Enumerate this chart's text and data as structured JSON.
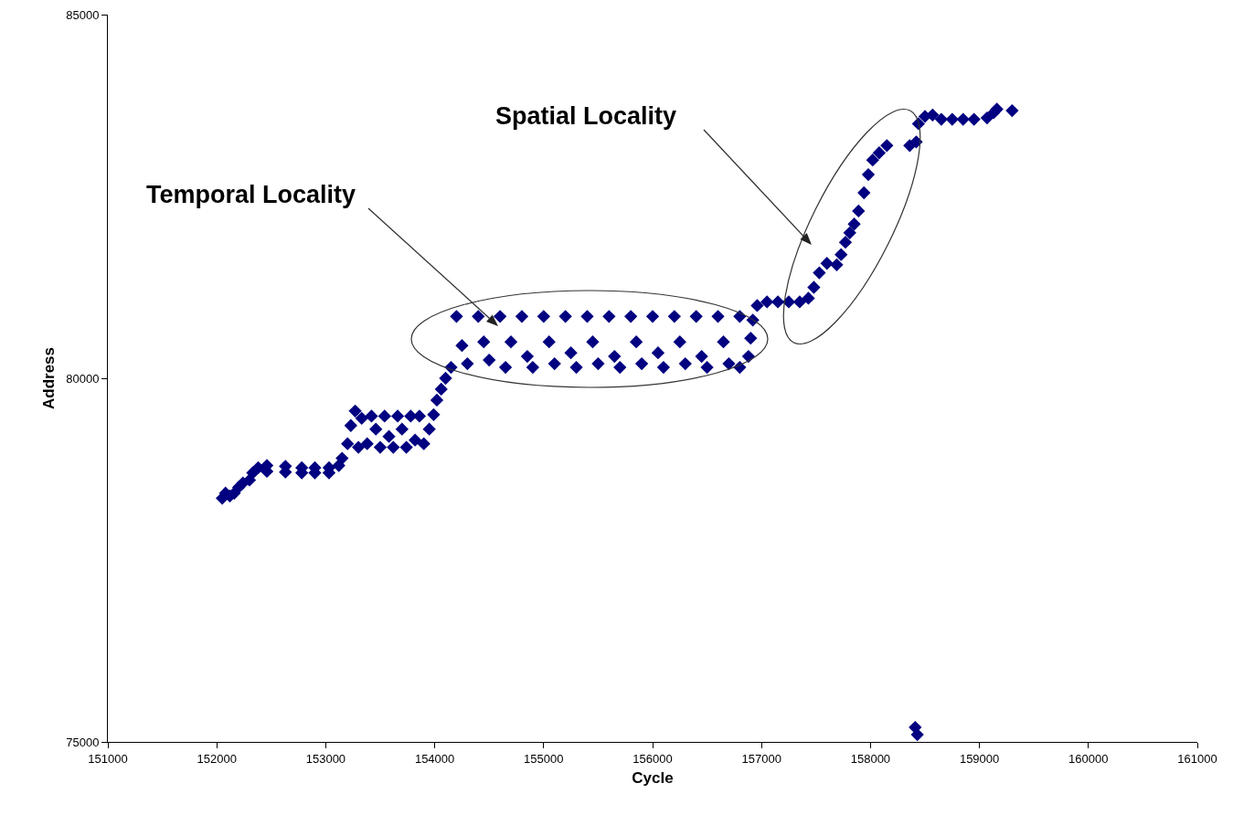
{
  "chart_data": {
    "type": "scatter",
    "xlabel": "Cycle",
    "ylabel": "Address",
    "annotations": [
      "Temporal Locality",
      "Spatial Locality"
    ],
    "series": [
      {
        "color": "#000080",
        "x": [
          152050,
          152080,
          152120,
          152160,
          152200,
          152240,
          152300,
          152330,
          152380,
          152460,
          152460,
          152630,
          152630,
          152780,
          152780,
          152900,
          152900,
          153030,
          153030,
          153120,
          153150,
          153200,
          153230,
          153270,
          153300,
          153330,
          153380,
          153420,
          153460,
          153500,
          153540,
          153580,
          153620,
          153660,
          153700,
          153740,
          153780,
          153820,
          153860,
          153900,
          153950,
          153990,
          154020,
          154060,
          154100,
          154150,
          154200,
          154250,
          154300,
          154400,
          154450,
          154500,
          154600,
          154650,
          154700,
          154800,
          154850,
          154900,
          155000,
          155050,
          155100,
          155200,
          155250,
          155300,
          155400,
          155450,
          155500,
          155600,
          155650,
          155700,
          155800,
          155850,
          155900,
          156000,
          156050,
          156100,
          156200,
          156250,
          156300,
          156400,
          156450,
          156500,
          156600,
          156650,
          156700,
          156800,
          156800,
          156880,
          156900,
          156920,
          156960,
          157050,
          157150,
          157250,
          157350,
          157430,
          157480,
          157530,
          157600,
          157690,
          157730,
          157770,
          157810,
          157850,
          157890,
          157940,
          157980,
          158020,
          158080,
          158150,
          158360,
          158420,
          158440,
          158500,
          158570,
          158650,
          158750,
          158850,
          158950,
          159070,
          159130,
          159160,
          159300,
          158410,
          158430
        ],
        "values": [
          78350,
          78420,
          78380,
          78420,
          78500,
          78560,
          78600,
          78700,
          78770,
          78800,
          78720,
          78790,
          78710,
          78770,
          78700,
          78770,
          78700,
          78770,
          78700,
          78800,
          78900,
          79100,
          79350,
          79550,
          79050,
          79450,
          79100,
          79480,
          79300,
          79050,
          79480,
          79200,
          79050,
          79480,
          79300,
          79050,
          79480,
          79150,
          79480,
          79100,
          79300,
          79500,
          79700,
          79850,
          80000,
          80150,
          80850,
          80450,
          80200,
          80850,
          80500,
          80250,
          80850,
          80150,
          80500,
          80850,
          80300,
          80150,
          80850,
          80500,
          80200,
          80850,
          80350,
          80150,
          80850,
          80500,
          80200,
          80850,
          80300,
          80150,
          80850,
          80500,
          80200,
          80850,
          80350,
          80150,
          80850,
          80500,
          80200,
          80850,
          80300,
          80150,
          80850,
          80500,
          80200,
          80850,
          80150,
          80300,
          80550,
          80800,
          81000,
          81050,
          81050,
          81050,
          81050,
          81100,
          81250,
          81450,
          81580,
          81560,
          81700,
          81870,
          82000,
          82120,
          82300,
          82550,
          82800,
          83000,
          83100,
          83200,
          83200,
          83250,
          83500,
          83600,
          83620,
          83560,
          83560,
          83560,
          83560,
          83580,
          83650,
          83700,
          83680,
          75200,
          75100
        ]
      }
    ],
    "xlim": [
      151000,
      161000
    ],
    "xticks": [
      151000,
      152000,
      153000,
      154000,
      155000,
      156000,
      157000,
      158000,
      159000,
      160000,
      161000
    ],
    "ylim": [
      75000,
      85000
    ],
    "yticks": [
      75000,
      80000,
      85000
    ],
    "grid": false,
    "marker": "diamond"
  }
}
